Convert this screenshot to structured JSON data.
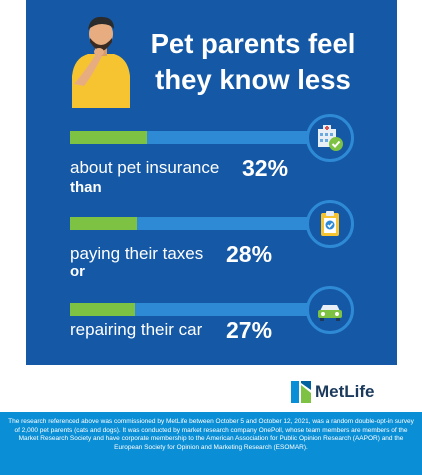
{
  "title_line1": "Pet parents feel",
  "title_line2": "they know less",
  "connector_than": "than",
  "connector_or": "or",
  "brand": "MetLife",
  "footer": "The research referenced above was commissioned by MetLife between October 5 and October 12, 2021, was a random double-opt-in survey of 2,000 pet parents (cats and dogs). It was conducted by market research company OnePoll, whose team members are members of the Market Research Society and have corporate membership to the American Association for Public Opinion Research (AAPOR) and the European Society for Opinion and Marketing Research (ESOMAR).",
  "colors": {
    "panel": "#1458a6",
    "track": "#2f8ad6",
    "fill": "#7dc242",
    "footer": "#0a8fd6"
  },
  "icons": [
    "hospital-icon",
    "clipboard-check-icon",
    "car-icon"
  ],
  "chart_data": {
    "type": "bar",
    "categories": [
      "about pet insurance",
      "paying their taxes",
      "repairing their car"
    ],
    "values": [
      32,
      28,
      27
    ],
    "value_labels": [
      "32%",
      "28%",
      "27%"
    ],
    "unit": "%",
    "ylim": [
      0,
      100
    ]
  }
}
